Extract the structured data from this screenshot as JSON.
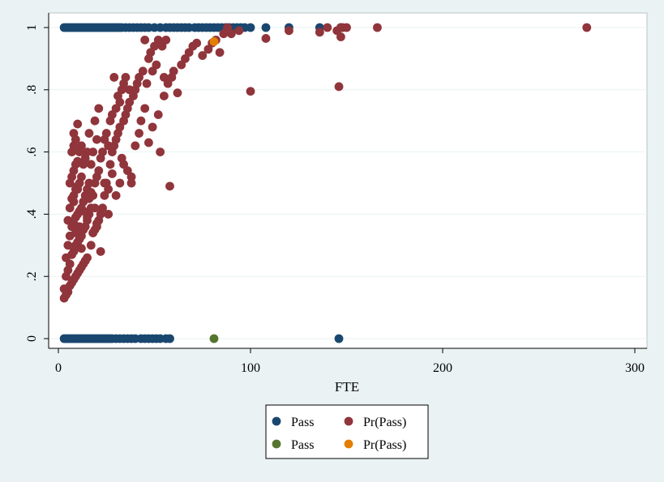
{
  "chart_data": {
    "type": "scatter",
    "title": "",
    "xlabel": "FTE",
    "ylabel": "",
    "xlim": [
      0,
      305
    ],
    "ylim": [
      0,
      1
    ],
    "xticks": [
      0,
      100,
      200,
      300
    ],
    "xtick_labels": [
      "0",
      "100",
      "200",
      "300"
    ],
    "yticks": [
      0,
      0.2,
      0.4,
      0.6,
      0.8,
      1
    ],
    "ytick_labels": [
      "0",
      ".2",
      ".4",
      ".6",
      ".8",
      "1"
    ],
    "grid": true,
    "legend_position": "bottom",
    "legend": [
      {
        "label": "Pass",
        "color": "#1a476f"
      },
      {
        "label": "Pr(Pass)",
        "color": "#90353b"
      },
      {
        "label": "Pass",
        "color": "#55752f"
      },
      {
        "label": "Pr(Pass)",
        "color": "#e37e00"
      }
    ],
    "series": [
      {
        "name": "Pass",
        "color": "#1a476f",
        "x": [
          3,
          4,
          5,
          6,
          7,
          8,
          9,
          10,
          11,
          12,
          13,
          14,
          15,
          16,
          17,
          18,
          19,
          20,
          21,
          22,
          23,
          24,
          25,
          26,
          27,
          28,
          29,
          30,
          31,
          32,
          33,
          35,
          37,
          39,
          41,
          43,
          45,
          47,
          50,
          53,
          56,
          58,
          60,
          62,
          64,
          66,
          68,
          71,
          73,
          75,
          77,
          79,
          81,
          83,
          85,
          87,
          89,
          91,
          93,
          95,
          97,
          100,
          108,
          120,
          136,
          147,
          3,
          4,
          5,
          6,
          7,
          8,
          9,
          10,
          11,
          12,
          13,
          14,
          15,
          16,
          17,
          18,
          19,
          20,
          21,
          22,
          23,
          24,
          25,
          26,
          27,
          28,
          30,
          32,
          34,
          36,
          38,
          40,
          43,
          45,
          47,
          49,
          51,
          53,
          56,
          58,
          146
        ],
        "y": [
          1,
          1,
          1,
          1,
          1,
          1,
          1,
          1,
          1,
          1,
          1,
          1,
          1,
          1,
          1,
          1,
          1,
          1,
          1,
          1,
          1,
          1,
          1,
          1,
          1,
          1,
          1,
          1,
          1,
          1,
          1,
          1,
          1,
          1,
          1,
          1,
          1,
          1,
          1,
          1,
          1,
          1,
          1,
          1,
          1,
          1,
          1,
          1,
          1,
          1,
          1,
          1,
          1,
          1,
          1,
          1,
          1,
          1,
          1,
          1,
          1,
          1,
          1,
          1,
          1,
          1,
          0,
          0,
          0,
          0,
          0,
          0,
          0,
          0,
          0,
          0,
          0,
          0,
          0,
          0,
          0,
          0,
          0,
          0,
          0,
          0,
          0,
          0,
          0,
          0,
          0,
          0,
          0,
          0,
          0,
          0,
          0,
          0,
          0,
          0,
          0,
          0,
          0,
          0,
          0,
          0,
          0
        ]
      },
      {
        "name": "Pr(Pass)",
        "color": "#90353b",
        "x": [
          3,
          3,
          4,
          4,
          4,
          5,
          5,
          5,
          5,
          6,
          6,
          6,
          6,
          6,
          7,
          7,
          7,
          7,
          7,
          7,
          8,
          8,
          8,
          8,
          8,
          8,
          8,
          9,
          9,
          9,
          9,
          9,
          9,
          10,
          10,
          10,
          10,
          10,
          10,
          11,
          11,
          11,
          11,
          11,
          12,
          12,
          12,
          12,
          12,
          13,
          13,
          13,
          13,
          14,
          14,
          14,
          14,
          15,
          15,
          15,
          15,
          16,
          16,
          16,
          17,
          17,
          17,
          18,
          18,
          18,
          19,
          19,
          19,
          20,
          20,
          20,
          21,
          21,
          21,
          22,
          22,
          23,
          23,
          24,
          24,
          25,
          25,
          26,
          26,
          27,
          27,
          28,
          28,
          29,
          29,
          30,
          30,
          31,
          31,
          32,
          32,
          33,
          33,
          34,
          34,
          35,
          35,
          36,
          37,
          37,
          38,
          39,
          40,
          41,
          42,
          43,
          44,
          45,
          46,
          47,
          48,
          49,
          50,
          51,
          52,
          53,
          54,
          55,
          56,
          57,
          58,
          59,
          60,
          62,
          64,
          66,
          68,
          70,
          72,
          75,
          78,
          80,
          82,
          84,
          86,
          88,
          90,
          94,
          100,
          108,
          120,
          136,
          140,
          145,
          147,
          148,
          150,
          166,
          275,
          146,
          147,
          8,
          9,
          10,
          11,
          12,
          13,
          14,
          15,
          16,
          17,
          18,
          19,
          20,
          22,
          24,
          26,
          28,
          30,
          32,
          34,
          36,
          38,
          40,
          42,
          45,
          47,
          49,
          52,
          55
        ],
        "y": [
          0.13,
          0.16,
          0.14,
          0.2,
          0.26,
          0.15,
          0.22,
          0.3,
          0.38,
          0.17,
          0.24,
          0.33,
          0.42,
          0.5,
          0.18,
          0.27,
          0.36,
          0.45,
          0.52,
          0.6,
          0.19,
          0.28,
          0.37,
          0.46,
          0.54,
          0.62,
          0.66,
          0.2,
          0.3,
          0.39,
          0.48,
          0.56,
          0.64,
          0.21,
          0.31,
          0.4,
          0.49,
          0.57,
          0.69,
          0.22,
          0.32,
          0.41,
          0.5,
          0.6,
          0.23,
          0.33,
          0.42,
          0.52,
          0.62,
          0.24,
          0.35,
          0.44,
          0.56,
          0.25,
          0.36,
          0.46,
          0.58,
          0.26,
          0.38,
          0.48,
          0.6,
          0.4,
          0.5,
          0.66,
          0.3,
          0.42,
          0.56,
          0.34,
          0.46,
          0.6,
          0.35,
          0.5,
          0.7,
          0.37,
          0.52,
          0.64,
          0.38,
          0.54,
          0.74,
          0.4,
          0.58,
          0.42,
          0.6,
          0.46,
          0.64,
          0.5,
          0.66,
          0.48,
          0.62,
          0.56,
          0.7,
          0.6,
          0.72,
          0.62,
          0.84,
          0.64,
          0.74,
          0.66,
          0.78,
          0.68,
          0.76,
          0.58,
          0.8,
          0.7,
          0.82,
          0.72,
          0.84,
          0.74,
          0.76,
          0.8,
          0.52,
          0.78,
          0.8,
          0.82,
          0.84,
          0.7,
          0.86,
          0.96,
          0.82,
          0.9,
          0.92,
          0.86,
          0.94,
          0.88,
          0.96,
          0.6,
          0.94,
          0.84,
          0.96,
          0.82,
          0.49,
          0.84,
          0.86,
          0.79,
          0.88,
          0.9,
          0.92,
          0.94,
          0.95,
          0.91,
          0.93,
          0.95,
          0.96,
          0.92,
          0.98,
          1.0,
          0.98,
          0.99,
          0.795,
          0.965,
          0.99,
          0.985,
          1.0,
          0.99,
          0.97,
          1.0,
          1.0,
          1.0,
          1.0,
          0.81,
          1.0,
          0.44,
          0.34,
          0.48,
          0.36,
          0.29,
          0.41,
          0.25,
          0.39,
          0.45,
          0.47,
          0.34,
          0.42,
          0.36,
          0.28,
          0.5,
          0.4,
          0.53,
          0.46,
          0.5,
          0.56,
          0.54,
          0.5,
          0.62,
          0.66,
          0.74,
          0.63,
          0.68,
          0.72,
          0.78
        ]
      },
      {
        "name": "Pass",
        "color": "#55752f",
        "x": [
          81
        ],
        "y": [
          0
        ]
      },
      {
        "name": "Pr(Pass)",
        "color": "#e37e00",
        "x": [
          81
        ],
        "y": [
          0.955
        ]
      }
    ]
  }
}
